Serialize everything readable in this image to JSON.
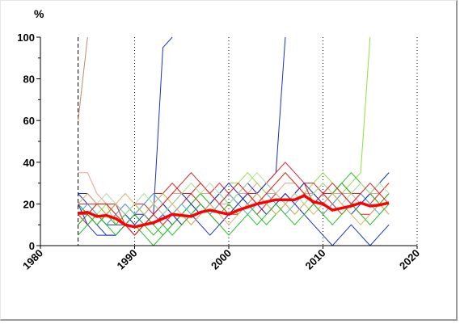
{
  "chart_data": {
    "type": "line",
    "title": "",
    "xlabel": "",
    "ylabel": "%",
    "xlim": [
      1980,
      2020
    ],
    "ylim": [
      0,
      100
    ],
    "x_ticks": [
      1980,
      1990,
      2000,
      2010,
      2020
    ],
    "y_ticks": [
      0,
      20,
      40,
      60,
      80,
      100
    ],
    "x_tick_labels": [
      "1980",
      "1990",
      "2000",
      "2010",
      "2020"
    ],
    "y_tick_labels": [
      "0",
      "20",
      "40",
      "60",
      "80",
      "100"
    ],
    "grid": "vertical dotted at decades",
    "reference_line_x": 1984,
    "x": [
      1984,
      1985,
      1986,
      1987,
      1988,
      1989,
      1990,
      1991,
      1992,
      1993,
      1994,
      1995,
      1996,
      1997,
      1998,
      1999,
      2000,
      2001,
      2002,
      2003,
      2004,
      2005,
      2006,
      2007,
      2008,
      2009,
      2010,
      2011,
      2012,
      2013,
      2014,
      2015,
      2016,
      2017
    ],
    "series": [
      {
        "color": "#c08a6a",
        "values": [
          60,
          100,
          null,
          null,
          null,
          null,
          null,
          null,
          null,
          null,
          null,
          null,
          null,
          null,
          null,
          null,
          null,
          null,
          null,
          null,
          null,
          null,
          null,
          null,
          null,
          null,
          null,
          null,
          null,
          null,
          null,
          null,
          null,
          null
        ]
      },
      {
        "color": "#e8a090",
        "values": [
          35,
          35,
          25,
          20,
          15,
          10,
          15,
          10,
          15,
          20,
          25,
          25,
          20,
          25,
          25,
          20,
          20,
          25,
          25,
          30,
          25,
          25,
          30,
          30,
          25,
          25,
          30,
          25,
          25,
          25,
          20,
          25,
          25,
          30
        ]
      },
      {
        "color": "#1a2fd0",
        "values": [
          25,
          20,
          15,
          10,
          10,
          10,
          5,
          10,
          15,
          95,
          100,
          null,
          null,
          null,
          null,
          null,
          null,
          null,
          null,
          null,
          null,
          null,
          null,
          null,
          null,
          null,
          null,
          null,
          null,
          null,
          null,
          null,
          null,
          null
        ]
      },
      {
        "color": "#1a2fd0",
        "values": [
          20,
          15,
          10,
          5,
          5,
          10,
          15,
          15,
          10,
          15,
          10,
          15,
          20,
          15,
          20,
          25,
          20,
          25,
          30,
          25,
          30,
          35,
          100,
          null,
          null,
          null,
          null,
          null,
          null,
          null,
          null,
          null,
          null,
          null
        ]
      },
      {
        "color": "#90e040",
        "values": [
          15,
          20,
          15,
          20,
          10,
          15,
          20,
          15,
          20,
          25,
          20,
          25,
          30,
          25,
          20,
          25,
          30,
          30,
          35,
          30,
          25,
          30,
          35,
          30,
          25,
          30,
          35,
          30,
          25,
          30,
          35,
          100,
          null,
          null
        ]
      },
      {
        "color": "#e02020",
        "values": [
          20,
          20,
          20,
          20,
          20,
          15,
          20,
          20,
          25,
          25,
          30,
          25,
          25,
          30,
          25,
          30,
          25,
          20,
          25,
          25,
          30,
          35,
          40,
          35,
          30,
          30,
          25,
          25,
          30,
          25,
          25,
          20,
          25,
          30
        ]
      },
      {
        "color": "#e02020",
        "values": [
          10,
          15,
          10,
          15,
          20,
          10,
          5,
          10,
          15,
          20,
          15,
          10,
          15,
          20,
          15,
          10,
          15,
          20,
          25,
          20,
          15,
          20,
          25,
          20,
          15,
          20,
          25,
          20,
          15,
          20,
          15,
          15,
          20,
          25
        ]
      },
      {
        "color": "#e02020",
        "values": [
          15,
          10,
          15,
          10,
          15,
          20,
          15,
          20,
          15,
          10,
          15,
          20,
          25,
          20,
          15,
          20,
          15,
          15,
          20,
          15,
          20,
          25,
          20,
          25,
          30,
          20,
          15,
          20,
          25,
          20,
          20,
          25,
          20,
          15
        ]
      },
      {
        "color": "#20c020",
        "values": [
          10,
          15,
          20,
          15,
          10,
          15,
          10,
          5,
          0,
          5,
          10,
          15,
          10,
          15,
          20,
          15,
          20,
          25,
          20,
          15,
          10,
          15,
          20,
          25,
          20,
          25,
          30,
          25,
          30,
          25,
          30,
          25,
          30,
          35
        ]
      },
      {
        "color": "#20c020",
        "values": [
          20,
          15,
          10,
          15,
          20,
          15,
          20,
          15,
          10,
          5,
          10,
          15,
          20,
          25,
          20,
          25,
          20,
          15,
          20,
          25,
          20,
          15,
          20,
          15,
          20,
          25,
          20,
          25,
          30,
          35,
          30,
          25,
          20,
          25
        ]
      },
      {
        "color": "#40b0e0",
        "values": [
          15,
          20,
          15,
          10,
          15,
          20,
          15,
          20,
          25,
          20,
          15,
          20,
          15,
          20,
          15,
          20,
          25,
          20,
          15,
          20,
          25,
          20,
          15,
          20,
          25,
          20,
          15,
          20,
          25,
          20,
          25,
          20,
          15,
          20
        ]
      },
      {
        "color": "#1a2fd0",
        "values": [
          20,
          10,
          5,
          5,
          5,
          10,
          15,
          10,
          15,
          20,
          15,
          10,
          15,
          10,
          5,
          10,
          15,
          20,
          25,
          20,
          15,
          20,
          25,
          20,
          15,
          10,
          5,
          0,
          5,
          10,
          5,
          0,
          5,
          10
        ]
      },
      {
        "color": "#1a2fd0",
        "values": [
          25,
          25,
          20,
          15,
          20,
          15,
          10,
          15,
          20,
          15,
          20,
          25,
          20,
          15,
          20,
          25,
          30,
          25,
          20,
          25,
          30,
          25,
          20,
          25,
          30,
          25,
          20,
          25,
          20,
          15,
          20,
          25,
          30,
          35
        ]
      },
      {
        "color": "#b0e0a0",
        "values": [
          15,
          15,
          20,
          25,
          20,
          15,
          20,
          25,
          20,
          15,
          20,
          25,
          30,
          25,
          30,
          25,
          20,
          25,
          30,
          35,
          30,
          25,
          20,
          25,
          20,
          25,
          30,
          25,
          20,
          25,
          30,
          25,
          30,
          25
        ]
      },
      {
        "color": "#e0b060",
        "values": [
          20,
          25,
          20,
          15,
          20,
          25,
          20,
          15,
          20,
          25,
          20,
          15,
          10,
          15,
          20,
          15,
          10,
          15,
          20,
          25,
          20,
          15,
          20,
          15,
          20,
          15,
          20,
          25,
          20,
          15,
          10,
          15,
          20,
          15
        ]
      },
      {
        "color": "#e02020",
        "values": [
          15,
          15,
          20,
          20,
          15,
          10,
          5,
          10,
          15,
          20,
          25,
          30,
          35,
          30,
          25,
          20,
          25,
          30,
          25,
          20,
          25,
          30,
          35,
          30,
          25,
          20,
          25,
          30,
          25,
          20,
          25,
          30,
          25,
          20
        ]
      },
      {
        "color": "#20c020",
        "values": [
          5,
          10,
          15,
          10,
          5,
          10,
          15,
          10,
          5,
          10,
          5,
          10,
          15,
          20,
          15,
          10,
          5,
          10,
          15,
          10,
          15,
          20,
          15,
          10,
          15,
          20,
          15,
          10,
          15,
          20,
          15,
          10,
          15,
          20
        ]
      }
    ],
    "mean_series": {
      "color": "#ff0000",
      "values": [
        15.5,
        16,
        14,
        14.5,
        13,
        10,
        9,
        10,
        11,
        13,
        15,
        14.5,
        14,
        16,
        17,
        16,
        15,
        17,
        18.5,
        20,
        21,
        22,
        22,
        22,
        24,
        21,
        20,
        17,
        18,
        19,
        20.5,
        19,
        19.5,
        20.5
      ]
    }
  }
}
